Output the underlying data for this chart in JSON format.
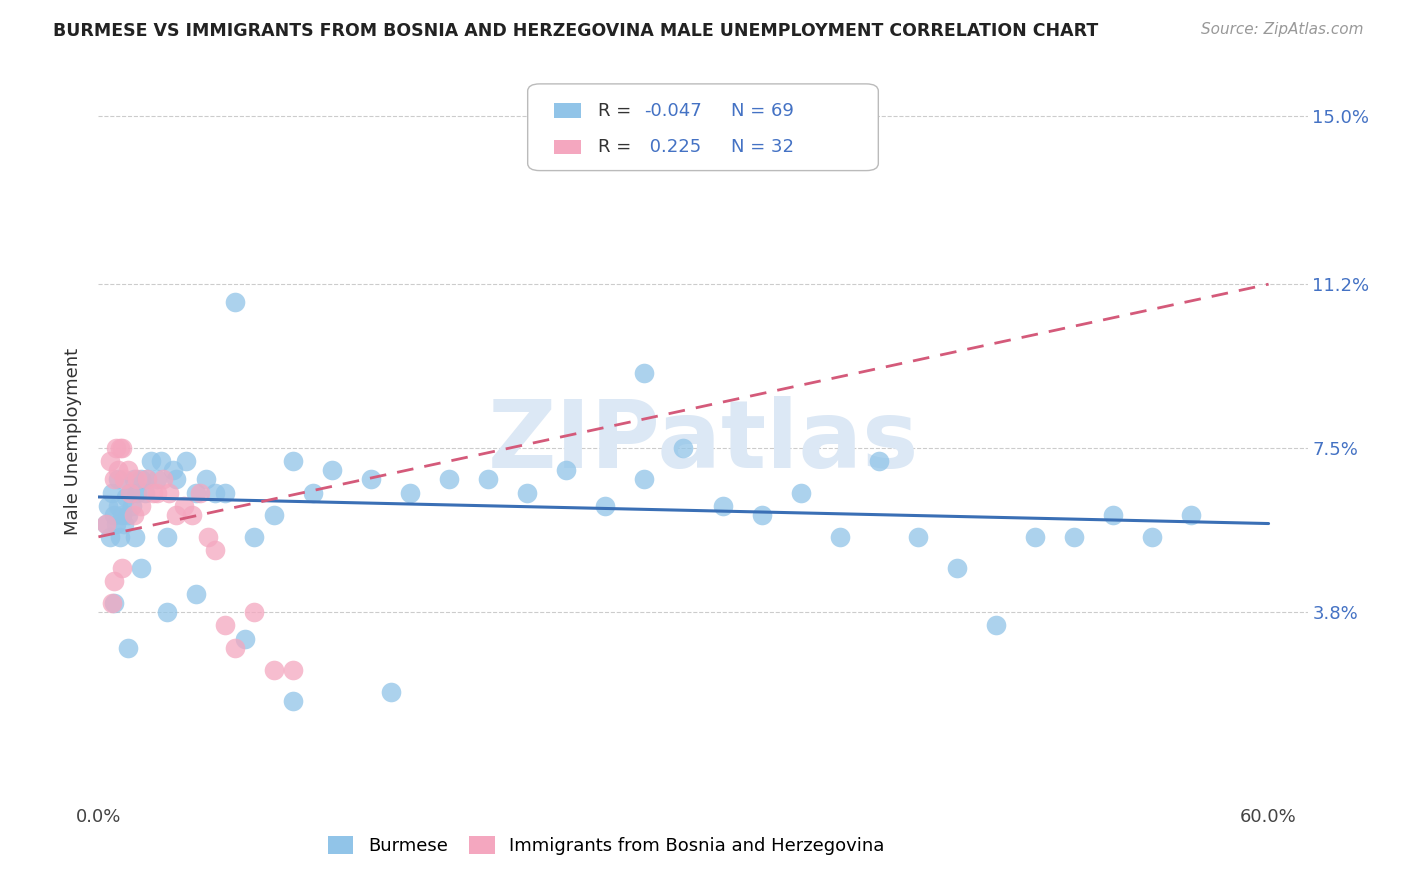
{
  "title": "BURMESE VS IMMIGRANTS FROM BOSNIA AND HERZEGOVINA MALE UNEMPLOYMENT CORRELATION CHART",
  "source": "Source: ZipAtlas.com",
  "ylabel": "Male Unemployment",
  "xlim": [
    0.0,
    0.62
  ],
  "ylim": [
    -0.005,
    0.158
  ],
  "ytick_values": [
    0.038,
    0.075,
    0.112,
    0.15
  ],
  "ytick_labels": [
    "3.8%",
    "7.5%",
    "11.2%",
    "15.0%"
  ],
  "blue_color": "#91c4e8",
  "pink_color": "#f4a7bf",
  "blue_line_color": "#3a6fb5",
  "pink_line_color": "#d45a7a",
  "watermark": "ZIPatlas",
  "watermark_color": "#dce8f5",
  "legend_r1_label": "R = ",
  "legend_r1_val": "-0.047",
  "legend_n1": "N = 69",
  "legend_r2_label": "R = ",
  "legend_r2_val": " 0.225",
  "legend_n2": "N = 32",
  "blue_x": [
    0.004,
    0.005,
    0.006,
    0.007,
    0.008,
    0.009,
    0.01,
    0.01,
    0.011,
    0.012,
    0.013,
    0.014,
    0.015,
    0.016,
    0.017,
    0.018,
    0.019,
    0.02,
    0.022,
    0.024,
    0.025,
    0.027,
    0.03,
    0.032,
    0.035,
    0.038,
    0.04,
    0.045,
    0.05,
    0.055,
    0.06,
    0.065,
    0.07,
    0.08,
    0.09,
    0.1,
    0.11,
    0.12,
    0.14,
    0.16,
    0.18,
    0.2,
    0.22,
    0.24,
    0.26,
    0.28,
    0.3,
    0.32,
    0.34,
    0.36,
    0.38,
    0.4,
    0.42,
    0.44,
    0.46,
    0.48,
    0.5,
    0.52,
    0.54,
    0.56,
    0.008,
    0.015,
    0.022,
    0.035,
    0.05,
    0.075,
    0.1,
    0.15,
    0.28
  ],
  "blue_y": [
    0.058,
    0.062,
    0.055,
    0.065,
    0.06,
    0.058,
    0.062,
    0.068,
    0.055,
    0.06,
    0.058,
    0.064,
    0.06,
    0.065,
    0.062,
    0.068,
    0.055,
    0.065,
    0.068,
    0.065,
    0.068,
    0.072,
    0.068,
    0.072,
    0.055,
    0.07,
    0.068,
    0.072,
    0.065,
    0.068,
    0.065,
    0.065,
    0.108,
    0.055,
    0.06,
    0.072,
    0.065,
    0.07,
    0.068,
    0.065,
    0.068,
    0.068,
    0.065,
    0.07,
    0.062,
    0.068,
    0.075,
    0.062,
    0.06,
    0.065,
    0.055,
    0.072,
    0.055,
    0.048,
    0.035,
    0.055,
    0.055,
    0.06,
    0.055,
    0.06,
    0.04,
    0.03,
    0.048,
    0.038,
    0.042,
    0.032,
    0.018,
    0.02,
    0.092
  ],
  "pink_x": [
    0.004,
    0.006,
    0.007,
    0.008,
    0.009,
    0.01,
    0.011,
    0.012,
    0.013,
    0.015,
    0.016,
    0.018,
    0.02,
    0.022,
    0.025,
    0.028,
    0.03,
    0.033,
    0.036,
    0.04,
    0.044,
    0.048,
    0.052,
    0.056,
    0.06,
    0.065,
    0.07,
    0.08,
    0.09,
    0.1,
    0.008,
    0.012
  ],
  "pink_y": [
    0.058,
    0.072,
    0.04,
    0.068,
    0.075,
    0.07,
    0.075,
    0.075,
    0.068,
    0.07,
    0.065,
    0.06,
    0.068,
    0.062,
    0.068,
    0.065,
    0.065,
    0.068,
    0.065,
    0.06,
    0.062,
    0.06,
    0.065,
    0.055,
    0.052,
    0.035,
    0.03,
    0.038,
    0.025,
    0.025,
    0.045,
    0.048
  ],
  "blue_line_x": [
    0.0,
    0.6
  ],
  "blue_line_y": [
    0.064,
    0.058
  ],
  "pink_line_x": [
    0.0,
    0.6
  ],
  "pink_line_y": [
    0.055,
    0.112
  ]
}
